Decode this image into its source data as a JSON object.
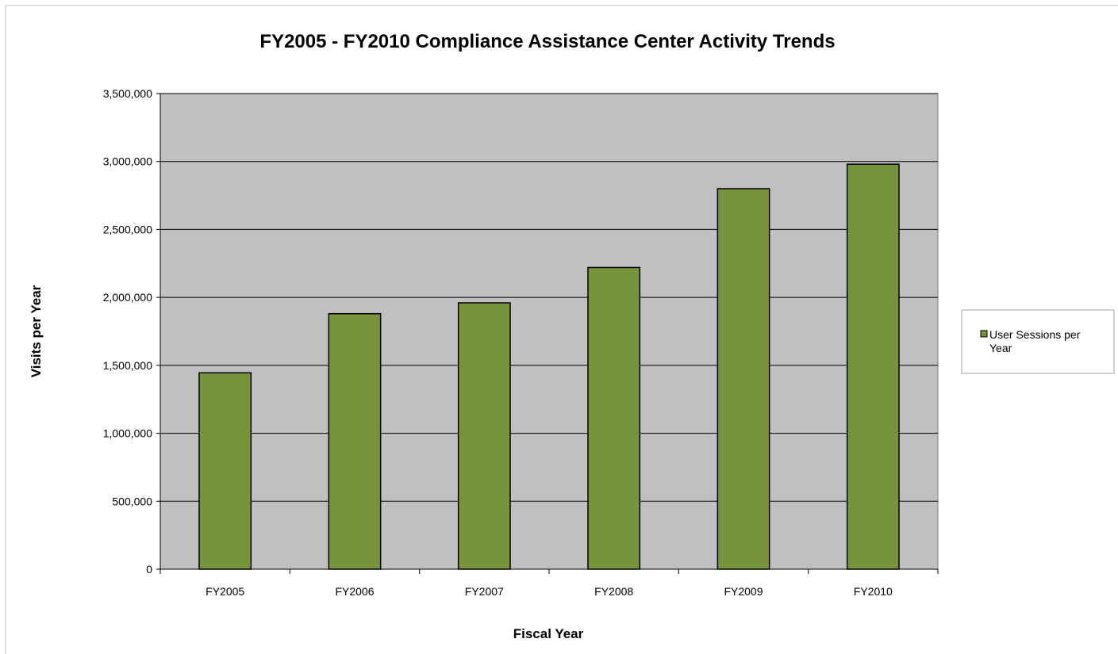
{
  "chart_data": {
    "type": "bar",
    "title": "FY2005 - FY2010 Compliance Assistance Center Activity Trends",
    "xlabel": "Fiscal Year",
    "ylabel": "Visits per Year",
    "categories": [
      "FY2005",
      "FY2006",
      "FY2007",
      "FY2008",
      "FY2009",
      "FY2010"
    ],
    "series": [
      {
        "name": "User Sessions per Year",
        "values": [
          1445000,
          1880000,
          1960000,
          2220000,
          2800000,
          2980000
        ],
        "color": "#77933c"
      }
    ],
    "ylim": [
      0,
      3500000
    ],
    "yticks": [
      0,
      500000,
      1000000,
      1500000,
      2000000,
      2500000,
      3000000,
      3500000
    ],
    "ytick_labels": [
      "0",
      "500,000",
      "1,000,000",
      "1,500,000",
      "2,000,000",
      "2,500,000",
      "3,000,000",
      "3,500,000"
    ],
    "grid": true,
    "plot_background": "#c0c0c0",
    "legend": {
      "position": "right",
      "entries": [
        "User Sessions per",
        "Year"
      ]
    }
  }
}
